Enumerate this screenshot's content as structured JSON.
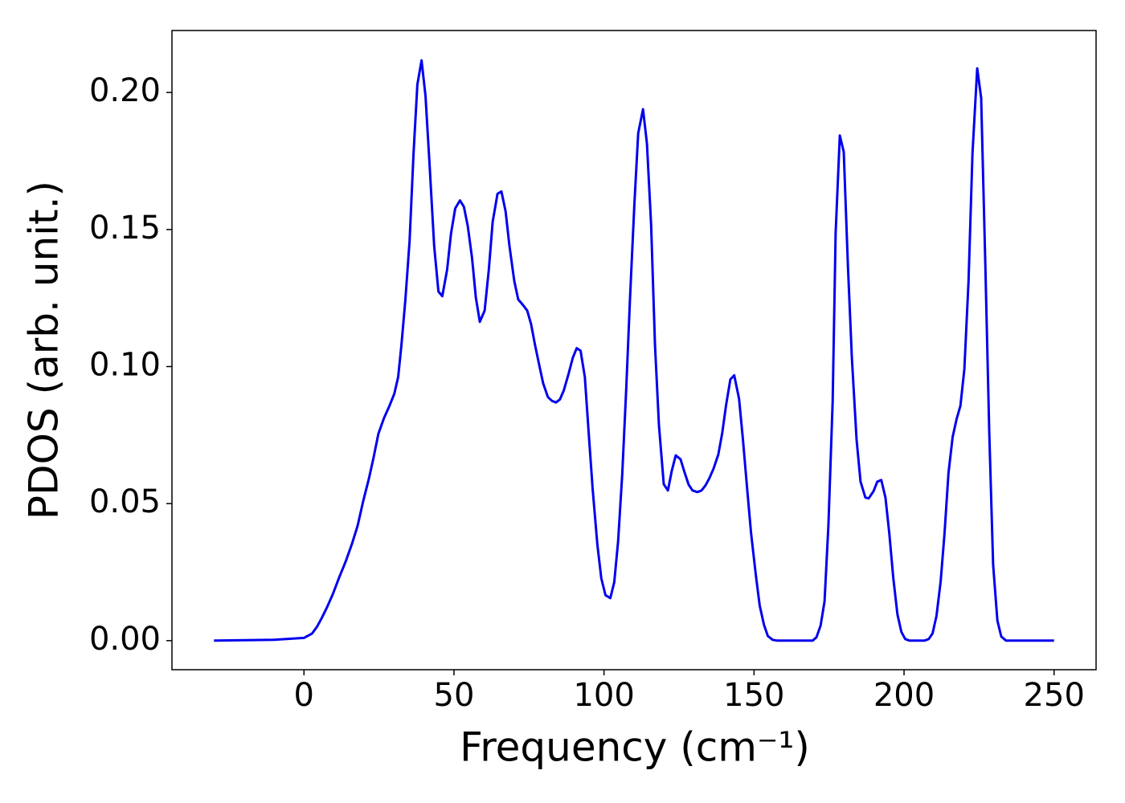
{
  "chart_data": {
    "type": "line",
    "xlabel": "Frequency (cm⁻¹)",
    "ylabel": "PDOS (arb. unit.)",
    "xlim": [
      -44,
      264
    ],
    "ylim": [
      -0.0106,
      0.2226
    ],
    "xticks": [
      0,
      50,
      100,
      150,
      200,
      250
    ],
    "yticks": [
      {
        "value": 0,
        "label": "0.00"
      },
      {
        "value": 0.05,
        "label": "0.05"
      },
      {
        "value": 0.1,
        "label": "0.10"
      },
      {
        "value": 0.15,
        "label": "0.15"
      },
      {
        "value": 0.2,
        "label": "0.20"
      }
    ],
    "series": [
      {
        "color": "#0000ee",
        "x": [
          -30,
          -10,
          0,
          2.7,
          4.3,
          5.9,
          7.7,
          9.6,
          11.7,
          13.9,
          16.0,
          17.9,
          19.7,
          21.6,
          23.2,
          24.8,
          26.7,
          28.5,
          30.1,
          31.4,
          32.5,
          33.8,
          35.2,
          36.5,
          37.8,
          39.2,
          40.5,
          41.8,
          43.4,
          44.8,
          46.1,
          47.7,
          49.0,
          50.4,
          52.0,
          53.3,
          54.6,
          56.0,
          57.3,
          58.6,
          60.2,
          61.6,
          62.9,
          64.5,
          65.8,
          67.2,
          68.5,
          70.1,
          71.4,
          73.0,
          74.4,
          75.7,
          77.0,
          78.4,
          79.7,
          81.3,
          82.6,
          84.0,
          85.3,
          86.6,
          88.2,
          89.6,
          90.9,
          92.2,
          93.6,
          94.9,
          96.2,
          97.8,
          99.1,
          100.5,
          102.1,
          103.4,
          104.7,
          106.1,
          107.4,
          108.7,
          110.1,
          111.4,
          113.0,
          114.3,
          115.7,
          117.0,
          118.3,
          119.9,
          121.3,
          122.6,
          123.9,
          125.5,
          126.9,
          128.2,
          129.5,
          131.1,
          132.5,
          133.8,
          135.1,
          136.5,
          138.1,
          139.4,
          140.7,
          142.1,
          143.4,
          145.0,
          146.3,
          147.7,
          149.0,
          150.6,
          151.9,
          153.3,
          154.6,
          156.2,
          157.8,
          169.5,
          170.8,
          172.2,
          173.5,
          174.8,
          176.2,
          177.2,
          178.6,
          179.9,
          181.3,
          182.6,
          184.2,
          185.5,
          187.1,
          188.2,
          189.8,
          191.1,
          192.4,
          193.8,
          195.1,
          196.4,
          197.8,
          199.1,
          200.4,
          201.8,
          206.8,
          208.2,
          209.5,
          210.8,
          212.2,
          213.5,
          214.8,
          216.2,
          217.5,
          218.8,
          220.1,
          221.5,
          222.8,
          224.4,
          225.7,
          227.1,
          228.4,
          229.7,
          231.1,
          232.4,
          234.0,
          250.0
        ],
        "values": [
          0,
          0.0003,
          0.001,
          0.0026,
          0.005,
          0.0082,
          0.0122,
          0.0169,
          0.023,
          0.0289,
          0.0353,
          0.042,
          0.0507,
          0.0589,
          0.0668,
          0.0755,
          0.0813,
          0.0857,
          0.0901,
          0.0962,
          0.108,
          0.1245,
          0.1458,
          0.1776,
          0.2029,
          0.2117,
          0.1988,
          0.1746,
          0.144,
          0.1274,
          0.1257,
          0.1353,
          0.1484,
          0.1577,
          0.1606,
          0.1583,
          0.1513,
          0.1397,
          0.1251,
          0.1163,
          0.1204,
          0.1353,
          0.1528,
          0.163,
          0.1639,
          0.1566,
          0.144,
          0.1312,
          0.1245,
          0.1224,
          0.1204,
          0.1155,
          0.1079,
          0.1006,
          0.0939,
          0.0889,
          0.0875,
          0.0869,
          0.088,
          0.0913,
          0.0974,
          0.1032,
          0.1067,
          0.1058,
          0.0962,
          0.0758,
          0.0554,
          0.035,
          0.0227,
          0.0166,
          0.0155,
          0.0213,
          0.0362,
          0.061,
          0.0918,
          0.1254,
          0.1589,
          0.1851,
          0.1939,
          0.1813,
          0.1516,
          0.1079,
          0.0787,
          0.0571,
          0.0548,
          0.062,
          0.0676,
          0.0662,
          0.0612,
          0.0569,
          0.0548,
          0.0542,
          0.0548,
          0.0566,
          0.0592,
          0.0627,
          0.0679,
          0.0758,
          0.086,
          0.0953,
          0.0968,
          0.0883,
          0.0735,
          0.0554,
          0.0394,
          0.0239,
          0.0128,
          0.0058,
          0.0017,
          0.0003,
          0,
          0,
          0.0012,
          0.0055,
          0.0143,
          0.042,
          0.0872,
          0.1487,
          0.1843,
          0.1783,
          0.1367,
          0.1032,
          0.0732,
          0.058,
          0.0522,
          0.0519,
          0.0545,
          0.058,
          0.0586,
          0.0522,
          0.0391,
          0.023,
          0.0096,
          0.0032,
          0.0006,
          0,
          0,
          0.0006,
          0.0026,
          0.009,
          0.0216,
          0.0391,
          0.061,
          0.0743,
          0.0808,
          0.0857,
          0.0991,
          0.1312,
          0.1778,
          0.2088,
          0.198,
          0.137,
          0.0758,
          0.0277,
          0.0073,
          0.0015,
          0,
          0
        ]
      }
    ]
  }
}
